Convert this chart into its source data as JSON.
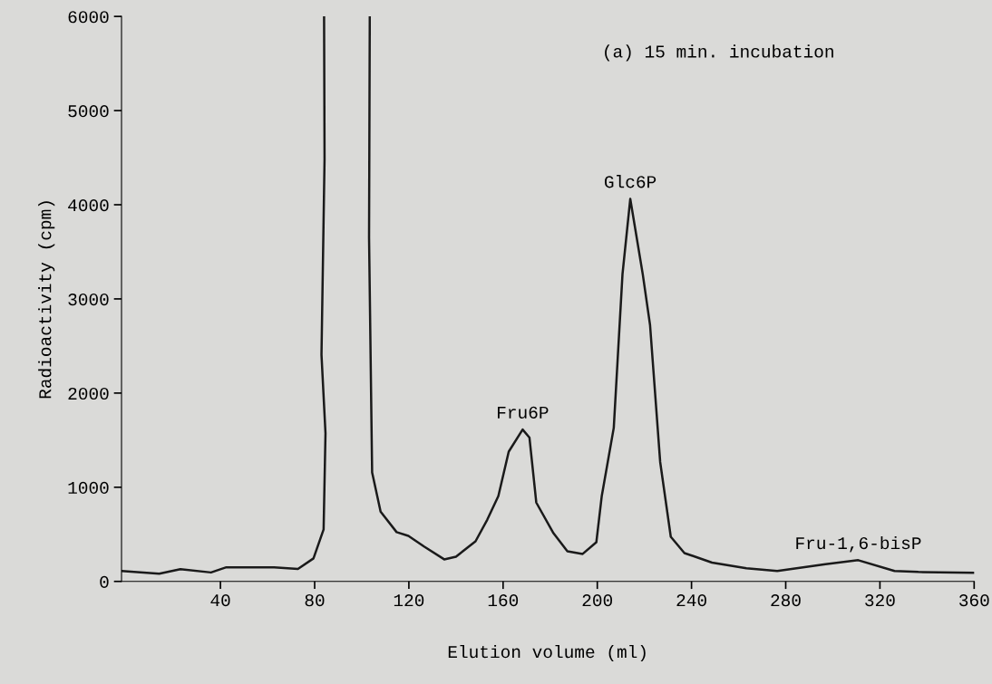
{
  "chart_data": {
    "type": "line",
    "title": "(a) 15 min. incubation",
    "xlabel": "Elution volume (ml)",
    "ylabel": "Radioactivity (cpm)",
    "xlim": [
      -2,
      360
    ],
    "xticks": [
      40,
      80,
      120,
      160,
      200,
      240,
      280,
      320,
      360
    ],
    "ylim": [
      0,
      6000
    ],
    "yticks": [
      0,
      1000,
      2000,
      3000,
      4000,
      5000,
      6000
    ],
    "grid": false,
    "legend": false,
    "marker": "none",
    "line_style": "solid",
    "series": [
      {
        "color": "#1a1a1a",
        "x": [
          -2,
          14,
          23,
          36,
          42.5,
          62.8,
          72.9,
          79.5,
          83.8,
          84.6,
          82.9,
          84.2,
          84.0,
          94,
          103.4,
          103.1,
          104.4,
          108,
          114.8,
          119.8,
          126.6,
          135,
          140,
          148.3,
          153.3,
          158,
          162.4,
          168.3,
          171.2,
          174.1,
          181.4,
          187.3,
          193.8,
          199.6,
          201.9,
          207,
          210.7,
          214,
          219.3,
          222.4,
          226.7,
          231.2,
          237,
          248.7,
          263.3,
          276.4,
          296.9,
          310.8,
          326.2,
          336.3,
          359.8
        ],
        "values": [
          110,
          81,
          130,
          95,
          150,
          150,
          132,
          244,
          552,
          1574,
          2407,
          4484,
          6000,
          null,
          6000,
          3651,
          1156,
          741,
          523,
          483,
          368,
          234,
          263,
          426,
          656,
          907,
          1378,
          1613,
          1527,
          837,
          512,
          320,
          292,
          416,
          907,
          1632,
          3263,
          4062,
          3263,
          2723,
          1268,
          474,
          301,
          200,
          139,
          110,
          182,
          225,
          110,
          100,
          91
        ]
      }
    ],
    "annotations": [
      {
        "text": "Fru6P",
        "x": 168.3,
        "y": 1613
      },
      {
        "text": "Glc6P",
        "x": 214,
        "y": 4062
      },
      {
        "text": "Fru-1,6-bisP",
        "x": 310.8,
        "y": 225
      }
    ]
  }
}
